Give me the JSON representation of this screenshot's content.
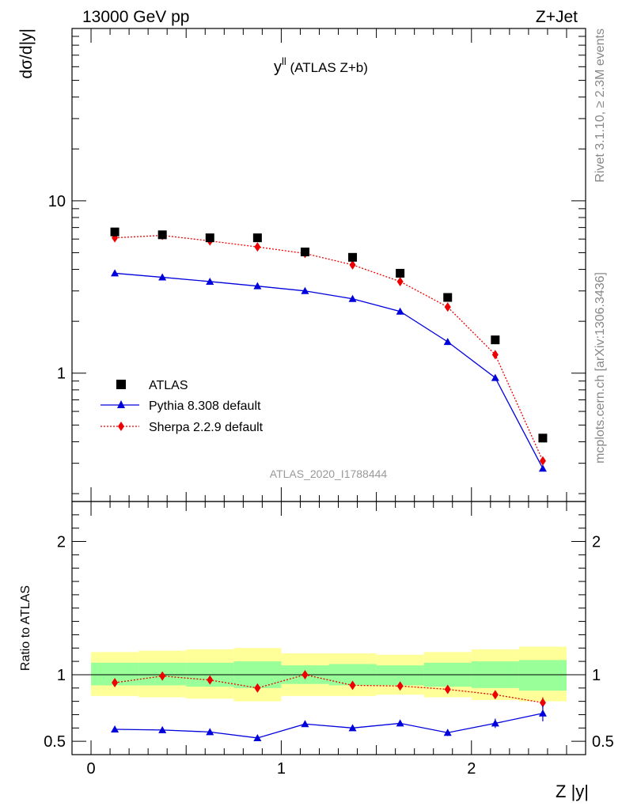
{
  "header": {
    "left": "13000 GeV pp",
    "right": "Z+Jet"
  },
  "side_text": {
    "rivet": "Rivet 3.1.10, ≥ 2.3M events",
    "site": "mcplots.cern.ch [arXiv:1306.3436]"
  },
  "analysis_id": "ATLAS_2020_I1788444",
  "colors": {
    "atlas": "#000000",
    "pythia": "#0000dd",
    "sherpa": "#ee0000",
    "band_outer": "#ffff99",
    "band_inner": "#99ff99"
  },
  "chart_data": [
    {
      "type": "scatter",
      "panel": "main",
      "title_main": "y",
      "title_sup": "ll",
      "title_rest": " (ATLAS Z+b)",
      "ylabel": "dσ/d|y|",
      "yscale": "log",
      "xlim": [
        -0.1,
        2.6
      ],
      "ylim": [
        0.18,
        100
      ],
      "yticks": [
        1,
        10
      ],
      "ytick_labels": [
        "1",
        "10"
      ],
      "x": [
        0.125,
        0.375,
        0.625,
        0.875,
        1.125,
        1.375,
        1.625,
        1.875,
        2.125,
        2.375
      ],
      "series": [
        {
          "name": "ATLAS",
          "marker": "square",
          "values": [
            6.6,
            6.35,
            6.1,
            6.1,
            5.05,
            4.7,
            3.8,
            2.75,
            1.56,
            0.42
          ]
        },
        {
          "name": "Pythia 8.308 default",
          "marker": "triangle",
          "line": "solid",
          "values": [
            3.8,
            3.6,
            3.4,
            3.2,
            3.0,
            2.7,
            2.28,
            1.52,
            0.94,
            0.28
          ]
        },
        {
          "name": "Sherpa 2.2.9 default",
          "marker": "diamond",
          "line": "dotted",
          "values": [
            6.1,
            6.3,
            5.85,
            5.4,
            4.95,
            4.25,
            3.4,
            2.42,
            1.28,
            0.31
          ]
        }
      ],
      "legend": [
        "ATLAS",
        "Pythia 8.308 default",
        "Sherpa 2.2.9 default"
      ],
      "legend_position": "lower-left"
    },
    {
      "type": "scatter",
      "panel": "ratio",
      "ylabel": "Ratio to ATLAS",
      "xlabel": "Z |y|",
      "xlim": [
        -0.1,
        2.6
      ],
      "ylim": [
        0.4,
        2.3
      ],
      "xticks": [
        0,
        1,
        2
      ],
      "xtick_labels": [
        "0",
        "1",
        "2"
      ],
      "yticks": [
        0.5,
        1,
        2
      ],
      "ytick_labels": [
        "0.5",
        "1",
        "2"
      ],
      "x_edges": [
        0,
        0.25,
        0.5,
        0.75,
        1.0,
        1.25,
        1.5,
        1.75,
        2.0,
        2.25,
        2.5
      ],
      "x": [
        0.125,
        0.375,
        0.625,
        0.875,
        1.125,
        1.375,
        1.625,
        1.875,
        2.125,
        2.375
      ],
      "band_outer": [
        [
          0.84,
          1.17
        ],
        [
          0.83,
          1.18
        ],
        [
          0.82,
          1.19
        ],
        [
          0.8,
          1.2
        ],
        [
          0.84,
          1.16
        ],
        [
          0.84,
          1.16
        ],
        [
          0.85,
          1.15
        ],
        [
          0.83,
          1.17
        ],
        [
          0.81,
          1.19
        ],
        [
          0.8,
          1.21
        ]
      ],
      "band_inner": [
        [
          0.92,
          1.09
        ],
        [
          0.92,
          1.09
        ],
        [
          0.91,
          1.09
        ],
        [
          0.9,
          1.1
        ],
        [
          0.93,
          1.07
        ],
        [
          0.92,
          1.08
        ],
        [
          0.92,
          1.07
        ],
        [
          0.91,
          1.09
        ],
        [
          0.9,
          1.1
        ],
        [
          0.88,
          1.11
        ]
      ],
      "series": [
        {
          "name": "Pythia 8.308 default",
          "values": [
            0.59,
            0.585,
            0.57,
            0.525,
            0.63,
            0.6,
            0.635,
            0.565,
            0.635,
            0.71
          ],
          "errors": [
            0.015,
            0.015,
            0.015,
            0.015,
            0.015,
            0.02,
            0.02,
            0.025,
            0.035,
            0.06
          ]
        },
        {
          "name": "Sherpa 2.2.9 default",
          "values": [
            0.94,
            0.99,
            0.96,
            0.9,
            1.0,
            0.92,
            0.915,
            0.89,
            0.85,
            0.79
          ],
          "errors": [
            0.01,
            0.01,
            0.01,
            0.01,
            0.01,
            0.01,
            0.01,
            0.015,
            0.02,
            0.04
          ]
        }
      ]
    }
  ]
}
